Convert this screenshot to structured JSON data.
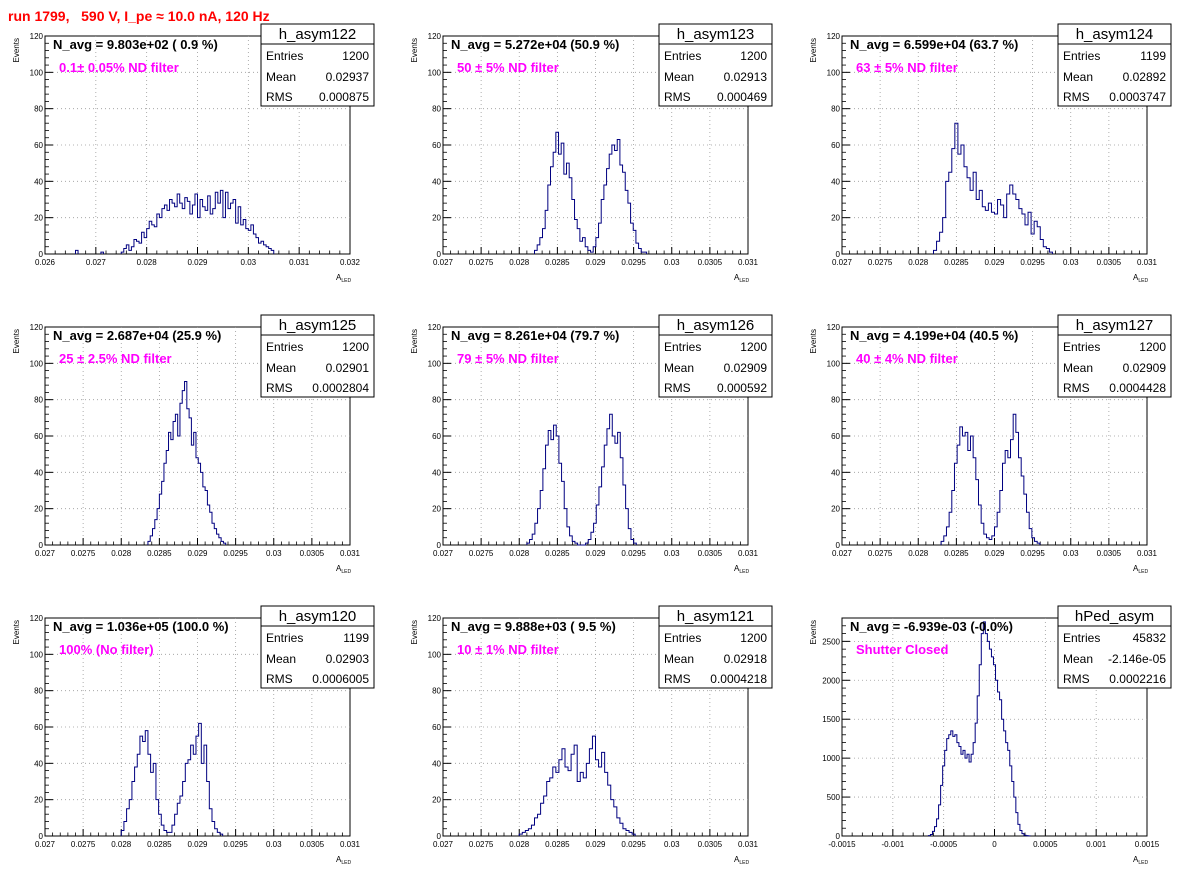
{
  "run_title": "run 1799,   590 V, I_pe ≈ 10.0 nA, 120 Hz",
  "colors": {
    "run_title": "#ff0000",
    "annotation": "#ff00ff",
    "hist_line": "#000080",
    "grid": "#9a9a9a"
  },
  "ylabel": "Events",
  "xlabel_main": "A",
  "xlabel_sub": "LED",
  "stats_labels": {
    "entries": "Entries",
    "mean": "Mean",
    "rms": "RMS"
  },
  "chart_data": [
    {
      "type": "histogram",
      "name": "h_asym122",
      "navg": "N_avg = 9.803e+02 ( 0.9 %)",
      "annotation": "0.1± 0.05% ND filter",
      "stats": {
        "entries": "1200",
        "mean": "0.02937",
        "rms": "0.000875"
      },
      "xlim": [
        0.026,
        0.032
      ],
      "ylim": [
        0,
        120
      ],
      "xticks": [
        0.026,
        0.027,
        0.028,
        0.029,
        0.03,
        0.031,
        0.032
      ],
      "xticklabels": [
        "0.026",
        "0.027",
        "0.028",
        "0.029",
        "0.03",
        "0.031",
        "0.032"
      ],
      "yticks": [
        0,
        20,
        40,
        60,
        80,
        100,
        120
      ],
      "yticklabels": [
        "0",
        "20",
        "40",
        "60",
        "80",
        "100",
        "120"
      ],
      "bins": {
        "start": 0.0275,
        "width": 5e-05,
        "counts": [
          1,
          3,
          5,
          2,
          4,
          8,
          7,
          6,
          12,
          9,
          14,
          18,
          16,
          15,
          22,
          20,
          25,
          27,
          24,
          30,
          28,
          26,
          33,
          28,
          25,
          31,
          29,
          22,
          27,
          33,
          20,
          30,
          26,
          24,
          32,
          22,
          25,
          34,
          28,
          35,
          20,
          34,
          25,
          28,
          30,
          17,
          26,
          16,
          19,
          14,
          13,
          16,
          11,
          9,
          6,
          7,
          5,
          4,
          3,
          2
        ]
      },
      "isolated": [
        [
          0.0266,
          2
        ],
        [
          0.0271,
          1
        ]
      ]
    },
    {
      "type": "histogram",
      "name": "h_asym123",
      "navg": "N_avg = 5.272e+04 (50.9 %)",
      "annotation": "50 ± 5% ND filter",
      "stats": {
        "entries": "1200",
        "mean": "0.02913",
        "rms": "0.000469"
      },
      "xlim": [
        0.027,
        0.031
      ],
      "ylim": [
        0,
        120
      ],
      "xticks": [
        0.027,
        0.0275,
        0.028,
        0.0285,
        0.029,
        0.0295,
        0.03,
        0.0305,
        0.031
      ],
      "xticklabels": [
        "0.027",
        "0.0275",
        "0.028",
        "0.0285",
        "0.029",
        "0.0295",
        "0.03",
        "0.0305",
        "0.031"
      ],
      "yticks": [
        0,
        20,
        40,
        60,
        80,
        100,
        120
      ],
      "yticklabels": [
        "0",
        "20",
        "40",
        "60",
        "80",
        "100",
        "120"
      ],
      "bins": {
        "start": 0.0282,
        "width": 3.5e-05,
        "counts": [
          2,
          5,
          9,
          14,
          24,
          38,
          48,
          56,
          67,
          55,
          61,
          44,
          50,
          42,
          30,
          19,
          14,
          7,
          9,
          4,
          2,
          1,
          4,
          9,
          17,
          30,
          38,
          47,
          55,
          60,
          57,
          63,
          49,
          45,
          35,
          28,
          17,
          13,
          6,
          3,
          1,
          1
        ]
      }
    },
    {
      "type": "histogram",
      "name": "h_asym124",
      "navg": "N_avg = 6.599e+04 (63.7 %)",
      "annotation": "63 ± 5% ND filter",
      "stats": {
        "entries": "1199",
        "mean": "0.02892",
        "rms": "0.0003747"
      },
      "xlim": [
        0.027,
        0.031
      ],
      "ylim": [
        0,
        120
      ],
      "xticks": [
        0.027,
        0.0275,
        0.028,
        0.0285,
        0.029,
        0.0295,
        0.03,
        0.0305,
        0.031
      ],
      "xticklabels": [
        "0.027",
        "0.0275",
        "0.028",
        "0.0285",
        "0.029",
        "0.0295",
        "0.03",
        "0.0305",
        "0.031"
      ],
      "yticks": [
        0,
        20,
        40,
        60,
        80,
        100,
        120
      ],
      "yticklabels": [
        "0",
        "20",
        "40",
        "60",
        "80",
        "100",
        "120"
      ],
      "bins": {
        "start": 0.0282,
        "width": 4e-05,
        "counts": [
          2,
          7,
          12,
          20,
          40,
          45,
          58,
          72,
          55,
          60,
          48,
          42,
          35,
          45,
          30,
          35,
          26,
          24,
          28,
          23,
          22,
          30,
          27,
          20,
          33,
          38,
          33,
          30,
          25,
          22,
          16,
          23,
          11,
          18,
          15,
          8,
          4,
          3,
          1
        ]
      }
    },
    {
      "type": "histogram",
      "name": "h_asym125",
      "navg": "N_avg = 2.687e+04 (25.9 %)",
      "annotation": "25 ± 2.5% ND filter",
      "stats": {
        "entries": "1200",
        "mean": "0.02901",
        "rms": "0.0002804"
      },
      "xlim": [
        0.027,
        0.031
      ],
      "ylim": [
        0,
        120
      ],
      "xticks": [
        0.027,
        0.0275,
        0.028,
        0.0285,
        0.029,
        0.0295,
        0.03,
        0.0305,
        0.031
      ],
      "xticklabels": [
        "0.027",
        "0.0275",
        "0.028",
        "0.0285",
        "0.029",
        "0.0295",
        "0.03",
        "0.0305",
        "0.031"
      ],
      "yticks": [
        0,
        20,
        40,
        60,
        80,
        100,
        120
      ],
      "yticklabels": [
        "0",
        "20",
        "40",
        "60",
        "80",
        "100",
        "120"
      ],
      "bins": {
        "start": 0.02835,
        "width": 3e-05,
        "counts": [
          2,
          5,
          9,
          14,
          20,
          28,
          35,
          45,
          52,
          62,
          58,
          68,
          72,
          60,
          78,
          85,
          90,
          75,
          70,
          55,
          62,
          48,
          45,
          40,
          32,
          30,
          22,
          18,
          12,
          9,
          6,
          4,
          2,
          1
        ]
      }
    },
    {
      "type": "histogram",
      "name": "h_asym126",
      "navg": "N_avg = 8.261e+04 (79.7 %)",
      "annotation": "79 ± 5% ND filter",
      "stats": {
        "entries": "1200",
        "mean": "0.02909",
        "rms": "0.000592"
      },
      "xlim": [
        0.027,
        0.031
      ],
      "ylim": [
        0,
        120
      ],
      "xticks": [
        0.027,
        0.0275,
        0.028,
        0.0285,
        0.029,
        0.0295,
        0.03,
        0.0305,
        0.031
      ],
      "xticklabels": [
        "0.027",
        "0.0275",
        "0.028",
        "0.0285",
        "0.029",
        "0.0295",
        "0.03",
        "0.0305",
        "0.031"
      ],
      "yticks": [
        0,
        20,
        40,
        60,
        80,
        100,
        120
      ],
      "yticklabels": [
        "0",
        "20",
        "40",
        "60",
        "80",
        "100",
        "120"
      ],
      "bins": {
        "start": 0.0281,
        "width": 3.5e-05,
        "counts": [
          1,
          3,
          6,
          12,
          20,
          30,
          42,
          55,
          63,
          58,
          66,
          60,
          45,
          35,
          20,
          10,
          5,
          2,
          1,
          0,
          0,
          0,
          1,
          3,
          7,
          12,
          22,
          32,
          43,
          55,
          64,
          72,
          60,
          56,
          62,
          48,
          33,
          20,
          9,
          3,
          1
        ]
      }
    },
    {
      "type": "histogram",
      "name": "h_asym127",
      "navg": "N_avg = 4.199e+04 (40.5 %)",
      "annotation": "40 ± 4% ND filter",
      "stats": {
        "entries": "1200",
        "mean": "0.02909",
        "rms": "0.0004428"
      },
      "xlim": [
        0.027,
        0.031
      ],
      "ylim": [
        0,
        120
      ],
      "xticks": [
        0.027,
        0.0275,
        0.028,
        0.0285,
        0.029,
        0.0295,
        0.03,
        0.0305,
        0.031
      ],
      "xticklabels": [
        "0.027",
        "0.0275",
        "0.028",
        "0.0285",
        "0.029",
        "0.0295",
        "0.03",
        "0.0305",
        "0.031"
      ],
      "yticks": [
        0,
        20,
        40,
        60,
        80,
        100,
        120
      ],
      "yticklabels": [
        "0",
        "20",
        "40",
        "60",
        "80",
        "100",
        "120"
      ],
      "bins": {
        "start": 0.0283,
        "width": 3.5e-05,
        "counts": [
          2,
          5,
          10,
          18,
          30,
          45,
          55,
          65,
          60,
          62,
          52,
          60,
          48,
          36,
          22,
          12,
          6,
          4,
          3,
          5,
          10,
          18,
          30,
          45,
          52,
          48,
          58,
          72,
          62,
          48,
          38,
          28,
          18,
          9,
          4,
          2,
          1
        ]
      }
    },
    {
      "type": "histogram",
      "name": "h_asym120",
      "navg": "N_avg = 1.036e+05 (100.0 %)",
      "annotation": "100% (No filter)",
      "stats": {
        "entries": "1199",
        "mean": "0.02903",
        "rms": "0.0006005"
      },
      "xlim": [
        0.027,
        0.031
      ],
      "ylim": [
        0,
        120
      ],
      "xticks": [
        0.027,
        0.0275,
        0.028,
        0.0285,
        0.029,
        0.0295,
        0.03,
        0.0305,
        0.031
      ],
      "xticklabels": [
        "0.027",
        "0.0275",
        "0.028",
        "0.0285",
        "0.029",
        "0.0295",
        "0.03",
        "0.0305",
        "0.031"
      ],
      "yticks": [
        0,
        20,
        40,
        60,
        80,
        100,
        120
      ],
      "yticklabels": [
        "0",
        "20",
        "40",
        "60",
        "80",
        "100",
        "120"
      ],
      "bins": {
        "start": 0.028,
        "width": 3.5e-05,
        "counts": [
          3,
          8,
          15,
          20,
          30,
          38,
          45,
          55,
          52,
          58,
          45,
          35,
          40,
          20,
          12,
          6,
          3,
          2,
          2,
          6,
          12,
          18,
          22,
          30,
          40,
          42,
          50,
          45,
          55,
          62,
          40,
          50,
          30,
          15,
          8,
          4,
          2,
          1
        ]
      }
    },
    {
      "type": "histogram",
      "name": "h_asym121",
      "navg": "N_avg = 9.888e+03 ( 9.5 %)",
      "annotation": "10 ± 1% ND filter",
      "stats": {
        "entries": "1200",
        "mean": "0.02918",
        "rms": "0.0004218"
      },
      "xlim": [
        0.027,
        0.031
      ],
      "ylim": [
        0,
        120
      ],
      "xticks": [
        0.027,
        0.0275,
        0.028,
        0.0285,
        0.029,
        0.0295,
        0.03,
        0.0305,
        0.031
      ],
      "xticklabels": [
        "0.027",
        "0.0275",
        "0.028",
        "0.0285",
        "0.029",
        "0.0295",
        "0.03",
        "0.0305",
        "0.031"
      ],
      "yticks": [
        0,
        20,
        40,
        60,
        80,
        100,
        120
      ],
      "yticklabels": [
        "0",
        "20",
        "40",
        "60",
        "80",
        "100",
        "120"
      ],
      "bins": {
        "start": 0.028,
        "width": 4e-05,
        "counts": [
          1,
          2,
          3,
          4,
          6,
          10,
          12,
          18,
          22,
          30,
          32,
          38,
          35,
          42,
          48,
          38,
          36,
          45,
          50,
          30,
          35,
          32,
          40,
          48,
          55,
          42,
          38,
          46,
          35,
          28,
          20,
          16,
          10,
          7,
          4,
          3,
          2,
          1
        ]
      }
    },
    {
      "type": "histogram",
      "name": "hPed_asym",
      "navg": "N_avg = -6.939e-03 (-0.0%)",
      "annotation": "Shutter Closed",
      "stats": {
        "entries": "45832",
        "mean": "-2.146e-05",
        "rms": "0.0002216"
      },
      "xlim": [
        -0.0015,
        0.0015
      ],
      "ylim": [
        0,
        2800
      ],
      "xticks": [
        -0.0015,
        -0.001,
        -0.0005,
        0,
        0.0005,
        0.001,
        0.0015
      ],
      "xticklabels": [
        "-0.0015",
        "-0.001",
        "-0.0005",
        "0",
        "0.0005",
        "0.001",
        "0.0015"
      ],
      "yticks": [
        0,
        500,
        1000,
        1500,
        2000,
        2500
      ],
      "yticklabels": [
        "0",
        "500",
        "1000",
        "1500",
        "2000",
        "2500"
      ],
      "bins": {
        "start": -0.00065,
        "width": 2e-05,
        "counts": [
          5,
          20,
          60,
          120,
          220,
          400,
          650,
          900,
          1100,
          1250,
          1300,
          1350,
          1280,
          1300,
          1200,
          1150,
          1050,
          1100,
          1000,
          1050,
          950,
          1050,
          1200,
          1450,
          1800,
          2200,
          2600,
          2750,
          2600,
          2500,
          2400,
          2300,
          2200,
          2000,
          1850,
          1750,
          1500,
          1350,
          1200,
          1100,
          900,
          700,
          500,
          300,
          150,
          70,
          30,
          10,
          5,
          2
        ]
      }
    }
  ]
}
